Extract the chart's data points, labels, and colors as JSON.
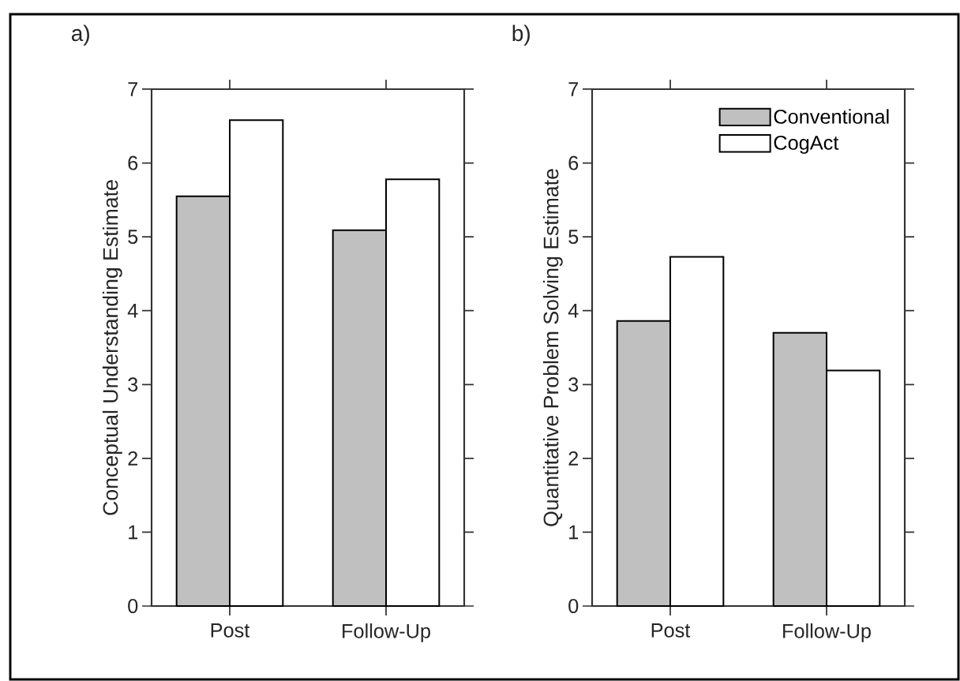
{
  "chart_data": [
    {
      "type": "bar",
      "title": "a)",
      "ylabel": "Conceptual Understanding Estimate",
      "categories": [
        "Post",
        "Follow-Up"
      ],
      "series": [
        {
          "color": "#c0c0c0",
          "values": [
            5.55,
            5.09
          ]
        },
        {
          "color": "#ffffff",
          "values": [
            6.58,
            5.78
          ]
        }
      ],
      "ylim": [
        0,
        7
      ],
      "yticks": [
        0,
        1,
        2,
        3,
        4,
        5,
        6,
        7
      ]
    },
    {
      "type": "bar",
      "title": "b)",
      "ylabel": "Quantitative Problem Solving Estimate",
      "categories": [
        "Post",
        "Follow-Up"
      ],
      "series": [
        {
          "name": "Conventional",
          "color": "#c0c0c0",
          "values": [
            3.86,
            3.7
          ]
        },
        {
          "name": "CogAct",
          "color": "#ffffff",
          "values": [
            4.73,
            3.19
          ]
        }
      ],
      "ylim": [
        0,
        7
      ],
      "yticks": [
        0,
        1,
        2,
        3,
        4,
        5,
        6,
        7
      ],
      "legend": "top right"
    }
  ]
}
